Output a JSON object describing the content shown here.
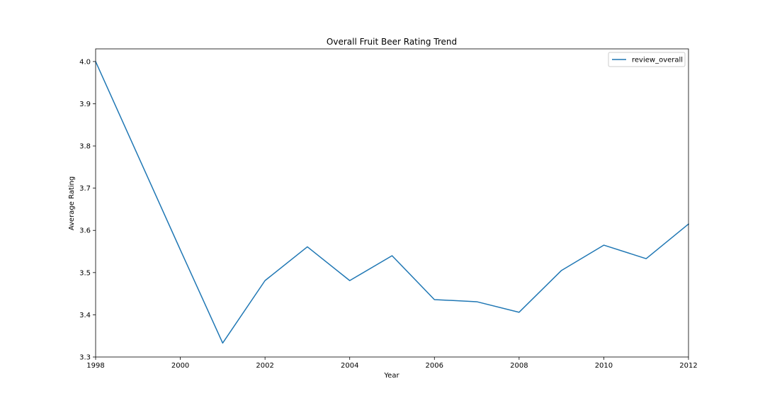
{
  "chart_data": {
    "type": "line",
    "title": "Overall Fruit Beer Rating Trend",
    "xlabel": "Year",
    "ylabel": "Average Rating",
    "xlim": [
      1998,
      2012
    ],
    "ylim": [
      3.3,
      4.03
    ],
    "x_ticks": [
      1998,
      2000,
      2002,
      2004,
      2006,
      2008,
      2010,
      2012
    ],
    "y_ticks": [
      3.3,
      3.4,
      3.5,
      3.6,
      3.7,
      3.8,
      3.9,
      4.0
    ],
    "x_tick_labels": [
      "1998",
      "2000",
      "2002",
      "2004",
      "2006",
      "2008",
      "2010",
      "2012"
    ],
    "y_tick_labels": [
      "3.3",
      "3.4",
      "3.5",
      "3.6",
      "3.7",
      "3.8",
      "3.9",
      "4.0"
    ],
    "grid": false,
    "legend_position": "top-right",
    "series": [
      {
        "name": "review_overall",
        "color": "#1f77b4",
        "x": [
          1998,
          1999,
          2000,
          2001,
          2002,
          2003,
          2004,
          2005,
          2006,
          2007,
          2008,
          2009,
          2010,
          2011,
          2012
        ],
        "y": [
          4.0,
          3.777,
          3.554,
          3.333,
          3.481,
          3.561,
          3.481,
          3.54,
          3.436,
          3.431,
          3.406,
          3.505,
          3.565,
          3.533,
          3.615
        ]
      }
    ]
  }
}
